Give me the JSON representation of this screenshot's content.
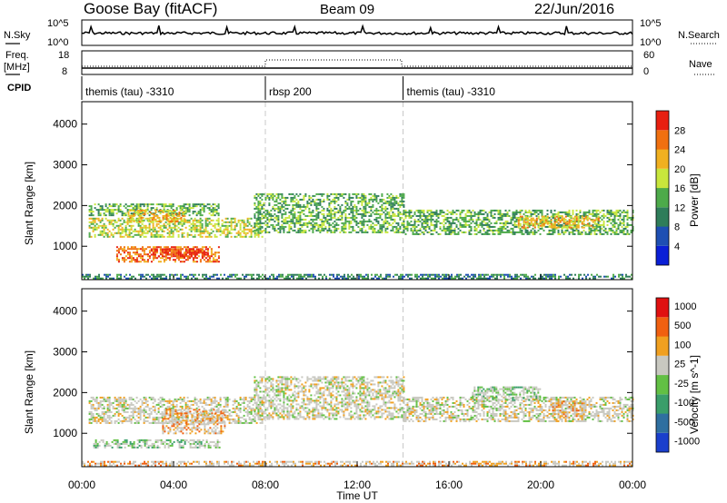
{
  "header": {
    "title": "Goose Bay (fitACF)",
    "beam": "Beam 09",
    "date": "22/Jun/2016"
  },
  "noise_panel": {
    "left_label": "N.Sky",
    "left_ticks": [
      "10^5",
      "10^0"
    ],
    "right_ticks": [
      "10^5",
      "10^0"
    ],
    "right_label": "N.Search"
  },
  "freq_panel": {
    "left_label_top": "Freq.",
    "left_label_bottom": "[MHz]",
    "left_ticks": [
      "18",
      "8"
    ],
    "right_ticks": [
      "60",
      "0"
    ],
    "right_label": "Nave"
  },
  "cpid": {
    "label": "CPID",
    "segments": [
      {
        "name": "themis (tau) -3310",
        "start_hour": 0,
        "end_hour": 8
      },
      {
        "name": "rbsp 200",
        "start_hour": 8,
        "end_hour": 14
      },
      {
        "name": "themis (tau) -3310",
        "start_hour": 14,
        "end_hour": 24
      }
    ]
  },
  "chart_data": [
    {
      "type": "heatmap",
      "panel": "power",
      "ylabel": "Slant Range [km]",
      "xlabel": "",
      "y_ticks": [
        1000,
        2000,
        3000,
        4000
      ],
      "ylim": [
        180,
        4550
      ],
      "xlim": [
        0,
        24
      ],
      "colorbar": {
        "label": "Power [dB]",
        "ticks": [
          4,
          8,
          12,
          16,
          20,
          24,
          28
        ],
        "colors": [
          "#0a1fd6",
          "#1e4fb3",
          "#2f7d5a",
          "#4daa4a",
          "#c8e63c",
          "#f0b020",
          "#f07010",
          "#e82010"
        ]
      },
      "bands": [
        {
          "x0": 0.3,
          "x1": 7.9,
          "y0": 1250,
          "y1": 1700,
          "level": 4
        },
        {
          "x0": 0.3,
          "x1": 6.0,
          "y0": 1750,
          "y1": 2050,
          "level": 3
        },
        {
          "x0": 1.5,
          "x1": 6.0,
          "y0": 600,
          "y1": 1000,
          "level": 6
        },
        {
          "x0": 3.0,
          "x1": 5.5,
          "y0": 750,
          "y1": 950,
          "level": 7
        },
        {
          "x0": 2.0,
          "x1": 4.5,
          "y0": 1600,
          "y1": 1900,
          "level": 5
        },
        {
          "x0": 7.5,
          "x1": 14.0,
          "y0": 1350,
          "y1": 2300,
          "level": 3
        },
        {
          "x0": 14.0,
          "x1": 24.0,
          "y0": 1300,
          "y1": 1900,
          "level": 3
        },
        {
          "x0": 19.0,
          "x1": 22.5,
          "y0": 1450,
          "y1": 1750,
          "level": 5
        },
        {
          "x0": 0.0,
          "x1": 24.0,
          "y0": 200,
          "y1": 320,
          "level": 2
        }
      ]
    },
    {
      "type": "heatmap",
      "panel": "velocity",
      "ylabel": "Slant Range [km]",
      "xlabel": "Time UT",
      "x_ticks": [
        "00:00",
        "04:00",
        "08:00",
        "12:00",
        "16:00",
        "20:00",
        "00:00"
      ],
      "y_ticks": [
        1000,
        2000,
        3000,
        4000
      ],
      "ylim": [
        180,
        4550
      ],
      "xlim": [
        0,
        24
      ],
      "colorbar": {
        "label": "Velocity [m s^-1]",
        "ticks": [
          "1000",
          "500",
          "100",
          "25",
          "-25",
          "-100",
          "-500",
          "-1000"
        ],
        "colors": [
          "#1a3fcc",
          "#2f6fa0",
          "#3a9e6a",
          "#62c044",
          "#c8c8c0",
          "#f0a020",
          "#f06010",
          "#e01010"
        ]
      },
      "bands": [
        {
          "x0": 0.3,
          "x1": 7.9,
          "y0": 1250,
          "y1": 1900,
          "level": 4
        },
        {
          "x0": 0.5,
          "x1": 6.0,
          "y0": 650,
          "y1": 850,
          "level": 3
        },
        {
          "x0": 3.5,
          "x1": 6.2,
          "y0": 1000,
          "y1": 1600,
          "level": 5
        },
        {
          "x0": 7.5,
          "x1": 14.0,
          "y0": 1350,
          "y1": 2400,
          "level": 4
        },
        {
          "x0": 14.0,
          "x1": 24.0,
          "y0": 1300,
          "y1": 1900,
          "level": 4
        },
        {
          "x0": 17.0,
          "x1": 20.0,
          "y0": 1800,
          "y1": 2150,
          "level": 3
        },
        {
          "x0": 20.5,
          "x1": 22.0,
          "y0": 1400,
          "y1": 1800,
          "level": 5
        },
        {
          "x0": 0.0,
          "x1": 24.0,
          "y0": 200,
          "y1": 320,
          "level": 5
        }
      ]
    }
  ]
}
